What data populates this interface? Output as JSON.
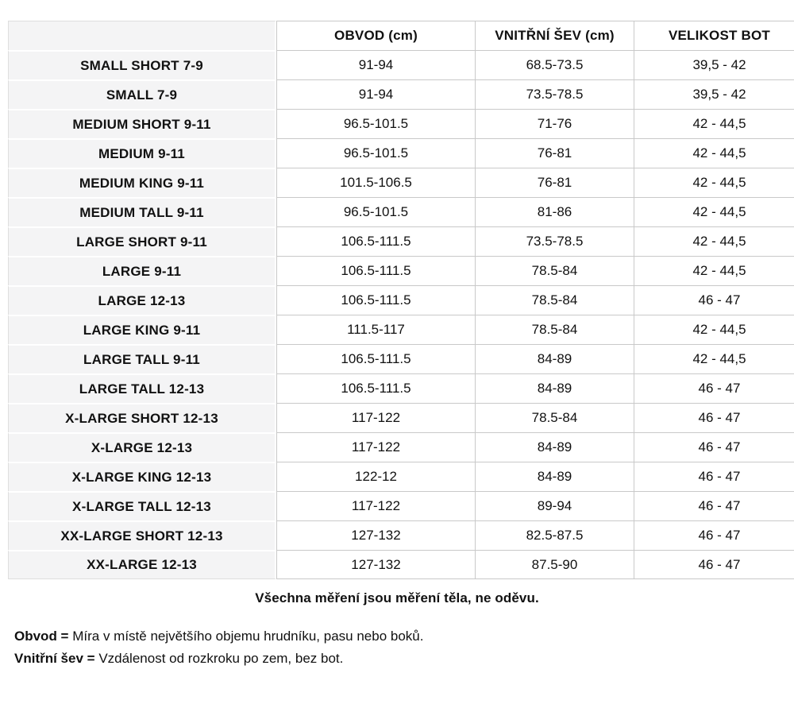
{
  "colors": {
    "text": "#111111",
    "row_label_background": "#f4f4f5",
    "grid_border": "#c9c9c9",
    "label_border": "#dedede",
    "page_background": "#ffffff"
  },
  "chart_data": {
    "type": "table",
    "title": "",
    "columns": [
      "",
      "OBVOD (cm)",
      "VNITŘNÍ ŠEV (cm)",
      "VELIKOST BOT"
    ],
    "rows": [
      {
        "size": "SMALL SHORT 7-9",
        "obvod_cm": "91-94",
        "vnitrni_sev_cm": "68.5-73.5",
        "velikost_bot": "39,5 - 42"
      },
      {
        "size": "SMALL 7-9",
        "obvod_cm": "91-94",
        "vnitrni_sev_cm": "73.5-78.5",
        "velikost_bot": "39,5 - 42"
      },
      {
        "size": "MEDIUM SHORT 9-11",
        "obvod_cm": "96.5-101.5",
        "vnitrni_sev_cm": "71-76",
        "velikost_bot": "42 - 44,5"
      },
      {
        "size": "MEDIUM 9-11",
        "obvod_cm": "96.5-101.5",
        "vnitrni_sev_cm": "76-81",
        "velikost_bot": "42 - 44,5"
      },
      {
        "size": "MEDIUM KING 9-11",
        "obvod_cm": "101.5-106.5",
        "vnitrni_sev_cm": "76-81",
        "velikost_bot": "42 - 44,5"
      },
      {
        "size": "MEDIUM TALL 9-11",
        "obvod_cm": "96.5-101.5",
        "vnitrni_sev_cm": "81-86",
        "velikost_bot": "42 - 44,5"
      },
      {
        "size": "LARGE SHORT 9-11",
        "obvod_cm": "106.5-111.5",
        "vnitrni_sev_cm": "73.5-78.5",
        "velikost_bot": "42 - 44,5"
      },
      {
        "size": "LARGE 9-11",
        "obvod_cm": "106.5-111.5",
        "vnitrni_sev_cm": "78.5-84",
        "velikost_bot": "42 - 44,5"
      },
      {
        "size": "LARGE 12-13",
        "obvod_cm": "106.5-111.5",
        "vnitrni_sev_cm": "78.5-84",
        "velikost_bot": "46 - 47"
      },
      {
        "size": "LARGE KING 9-11",
        "obvod_cm": "111.5-117",
        "vnitrni_sev_cm": "78.5-84",
        "velikost_bot": "42 - 44,5"
      },
      {
        "size": "LARGE TALL 9-11",
        "obvod_cm": "106.5-111.5",
        "vnitrni_sev_cm": "84-89",
        "velikost_bot": "42 - 44,5"
      },
      {
        "size": "LARGE TALL 12-13",
        "obvod_cm": "106.5-111.5",
        "vnitrni_sev_cm": "84-89",
        "velikost_bot": "46 - 47"
      },
      {
        "size": "X-LARGE SHORT 12-13",
        "obvod_cm": "117-122",
        "vnitrni_sev_cm": "78.5-84",
        "velikost_bot": "46 - 47"
      },
      {
        "size": "X-LARGE 12-13",
        "obvod_cm": "117-122",
        "vnitrni_sev_cm": "84-89",
        "velikost_bot": "46 - 47"
      },
      {
        "size": "X-LARGE KING 12-13",
        "obvod_cm": "122-12",
        "vnitrni_sev_cm": "84-89",
        "velikost_bot": "46 - 47"
      },
      {
        "size": "X-LARGE TALL 12-13",
        "obvod_cm": "117-122",
        "vnitrni_sev_cm": "89-94",
        "velikost_bot": "46 - 47"
      },
      {
        "size": "XX-LARGE SHORT 12-13",
        "obvod_cm": "127-132",
        "vnitrni_sev_cm": "82.5-87.5",
        "velikost_bot": "46 - 47"
      },
      {
        "size": "XX-LARGE 12-13",
        "obvod_cm": "127-132",
        "vnitrni_sev_cm": "87.5-90",
        "velikost_bot": "46 - 47"
      }
    ]
  },
  "notes": {
    "center_note": "Všechna měření jsou měření těla, ne oděvu.",
    "definitions": [
      {
        "term": "Obvod =",
        "text": "Míra v místě největšího objemu hrudníku, pasu nebo boků."
      },
      {
        "term": "Vnitřní šev =",
        "text": "Vzdálenost od rozkroku po zem, bez bot."
      }
    ]
  }
}
